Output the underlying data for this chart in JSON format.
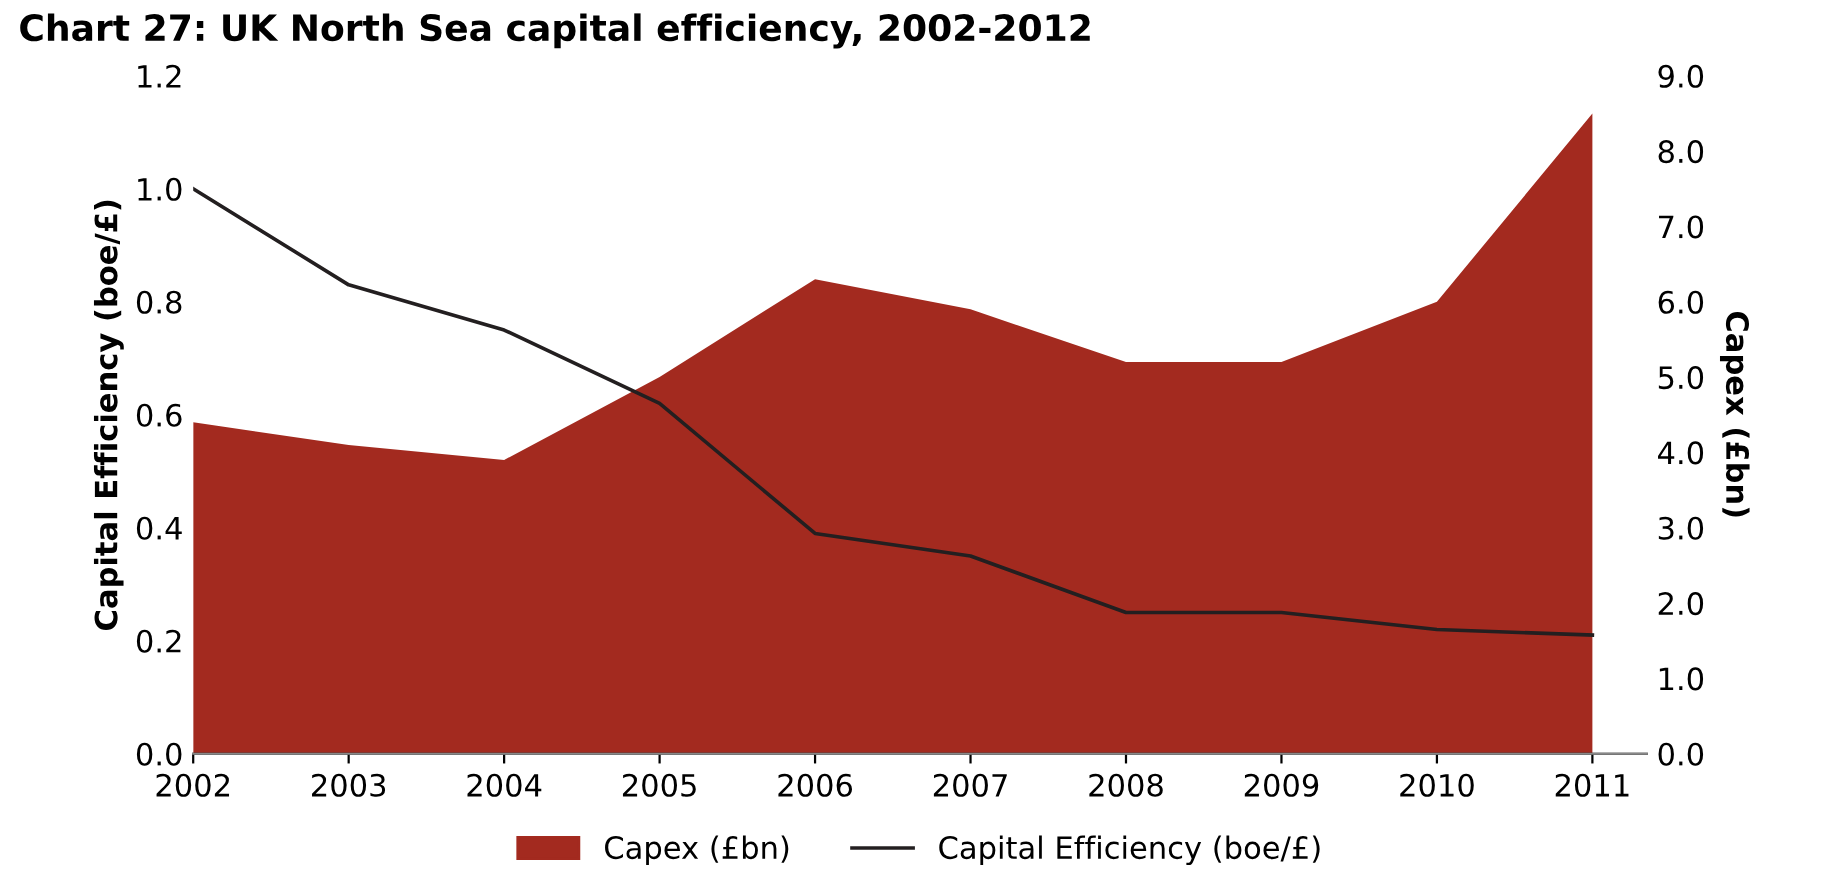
{
  "chart_data": {
    "type": "area",
    "title": "Chart 27: UK North Sea capital efficiency, 2002-2012",
    "categories": [
      "2002",
      "2003",
      "2004",
      "2005",
      "2006",
      "2007",
      "2008",
      "2009",
      "2010",
      "2011"
    ],
    "series": [
      {
        "name": "Capex (£bn)",
        "axis": "y2",
        "color": "#a32a1f",
        "values": [
          4.4,
          4.1,
          3.9,
          5.0,
          6.3,
          5.9,
          5.2,
          5.2,
          6.0,
          8.5
        ]
      },
      {
        "name": "Capital Efficiency (boe/£)",
        "type": "line",
        "color": "#231f20",
        "values": [
          1.0,
          0.83,
          0.75,
          0.62,
          0.39,
          0.35,
          0.25,
          0.25,
          0.22,
          0.21
        ]
      }
    ],
    "ylabel": "Capital Efficiency (boe/£)",
    "y2label": "Capex (£bn)",
    "ylim": [
      0,
      1.2
    ],
    "yticks": [
      {
        "value": 0,
        "label": "0.0"
      },
      {
        "value": 0.2,
        "label": "0.2"
      },
      {
        "value": 0.4,
        "label": "0.4"
      },
      {
        "value": 0.6,
        "label": "0.6"
      },
      {
        "value": 0.8,
        "label": "0.8"
      },
      {
        "value": 1,
        "label": "1.0"
      },
      {
        "value": 1.2,
        "label": "1.2"
      }
    ],
    "y2lim": [
      0,
      9
    ],
    "y2ticks": [
      {
        "value": 0,
        "label": "0.0"
      },
      {
        "value": 1,
        "label": "1.0"
      },
      {
        "value": 2,
        "label": "2.0"
      },
      {
        "value": 3,
        "label": "3.0"
      },
      {
        "value": 4,
        "label": "4.0"
      },
      {
        "value": 5,
        "label": "5.0"
      },
      {
        "value": 6,
        "label": "6.0"
      },
      {
        "value": 7,
        "label": "7.0"
      },
      {
        "value": 8,
        "label": "8.0"
      },
      {
        "value": 9,
        "label": "9.0"
      }
    ],
    "grid": false,
    "legend": "bottom",
    "marker": "none",
    "line_style": "solid"
  }
}
